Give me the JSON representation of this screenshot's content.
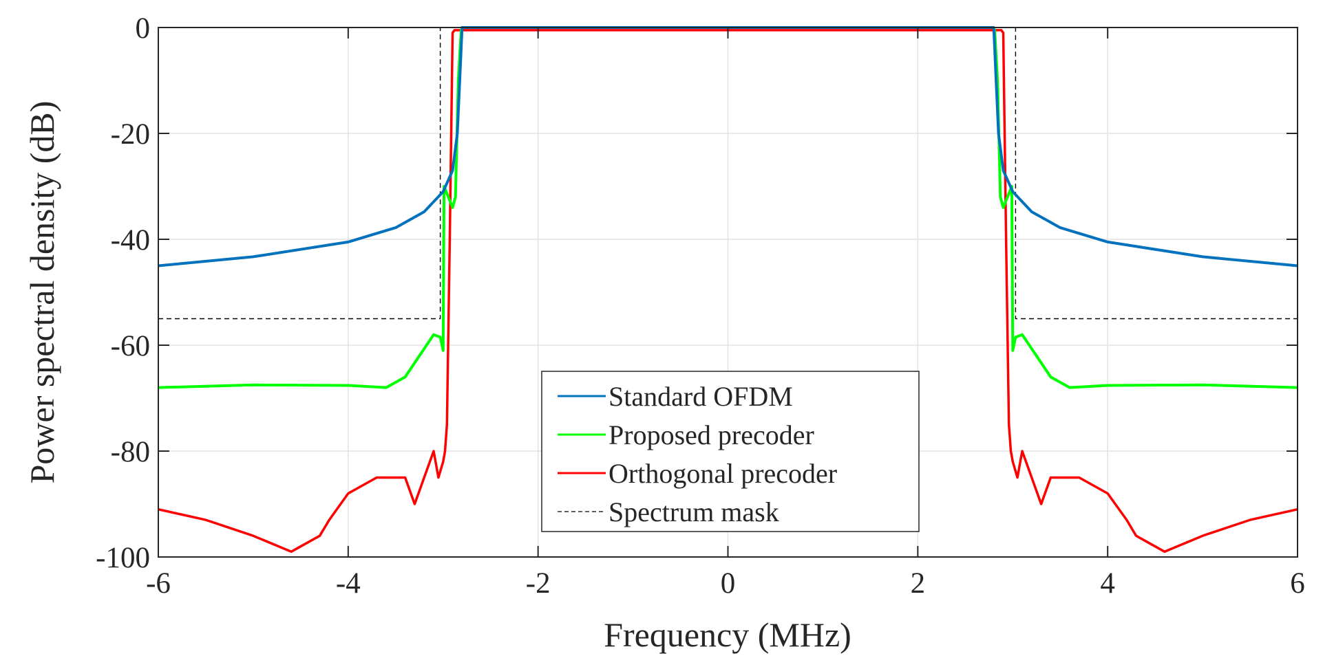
{
  "chart_data": {
    "type": "line",
    "title": "",
    "xlabel": "Frequency (MHz)",
    "ylabel": "Power spectral density (dB)",
    "xlim": [
      -6,
      6
    ],
    "ylim": [
      -100,
      0
    ],
    "xticks": [
      -6,
      -4,
      -2,
      0,
      2,
      4,
      6
    ],
    "yticks": [
      0,
      -20,
      -40,
      -60,
      -80,
      -100
    ],
    "xtick_labels": [
      "-6",
      "-4",
      "-2",
      "0",
      "2",
      "4",
      "6"
    ],
    "ytick_labels": [
      "0",
      "-20",
      "-40",
      "-60",
      "-80",
      "-100"
    ],
    "grid": true,
    "legend_position": "bottom-center",
    "series": [
      {
        "name": "Standard OFDM",
        "color": "#0072BD",
        "style": "solid",
        "x": [
          -6,
          -5,
          -4,
          -3.5,
          -3.2,
          -3.0,
          -2.9,
          -2.85,
          -2.82,
          -2.8,
          2.8,
          2.82,
          2.85,
          2.9,
          3.0,
          3.2,
          3.5,
          4,
          5,
          6
        ],
        "y": [
          -45,
          -43.3,
          -40.5,
          -37.8,
          -34.8,
          -31,
          -27,
          -20,
          -8,
          0,
          0,
          -8,
          -20,
          -27,
          -31,
          -34.8,
          -37.8,
          -40.5,
          -43.3,
          -45
        ]
      },
      {
        "name": "Proposed precoder",
        "color": "#00FF00",
        "style": "solid",
        "x": [
          -6,
          -5,
          -4,
          -3.6,
          -3.4,
          -3.25,
          -3.1,
          -3.03,
          -3.0,
          -2.99,
          -2.9,
          -2.87,
          -2.84,
          -2.81,
          -2.79,
          2.79,
          2.81,
          2.84,
          2.87,
          2.9,
          2.99,
          3.0,
          3.03,
          3.1,
          3.25,
          3.4,
          3.6,
          4,
          5,
          6
        ],
        "y": [
          -68,
          -67.5,
          -67.6,
          -68,
          -66,
          -62,
          -58,
          -58.5,
          -61,
          -30,
          -34,
          -32,
          -10,
          -0.5,
          0,
          0,
          -0.5,
          -10,
          -32,
          -34,
          -30,
          -61,
          -58.5,
          -58,
          -62,
          -66,
          -68,
          -67.6,
          -67.5,
          -68
        ]
      },
      {
        "name": "Orthogonal precoder",
        "color": "#FF0000",
        "style": "solid",
        "x": [
          -6,
          -5.5,
          -5,
          -4.6,
          -4.3,
          -4.2,
          -4.0,
          -3.7,
          -3.4,
          -3.3,
          -3.1,
          -3.05,
          -3.0,
          -2.98,
          -2.96,
          -2.93,
          -2.9,
          -2.88,
          2.88,
          2.9,
          2.93,
          2.96,
          2.98,
          3.0,
          3.05,
          3.1,
          3.3,
          3.4,
          3.7,
          4.0,
          4.2,
          4.3,
          4.6,
          5,
          5.5,
          6
        ],
        "y": [
          -91,
          -93,
          -96,
          -99,
          -96,
          -93,
          -88,
          -85,
          -85,
          -90,
          -80,
          -85,
          -82,
          -80,
          -75,
          -40,
          -1,
          -0.5,
          -0.5,
          -1,
          -40,
          -75,
          -80,
          -82,
          -85,
          -80,
          -90,
          -85,
          -85,
          -88,
          -93,
          -96,
          -99,
          -96,
          -93,
          -91
        ]
      },
      {
        "name": "Spectrum mask",
        "color": "#000000",
        "style": "dashed",
        "x": [
          -6,
          -3.03,
          -3.03,
          3.03,
          3.03,
          6
        ],
        "y": [
          -55,
          -55,
          0,
          0,
          -55,
          -55
        ]
      }
    ]
  }
}
